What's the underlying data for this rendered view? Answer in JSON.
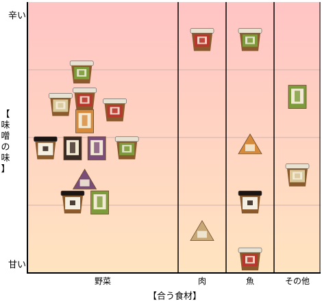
{
  "chart_data": {
    "type": "scatter",
    "title": "",
    "xlabel": "【合う食材】",
    "ylabel": "【味噌の味】",
    "categories": [
      "野菜",
      "肉",
      "魚",
      "その他"
    ],
    "y_axis": {
      "top_label": "辛い",
      "bottom_label": "甘い",
      "range": [
        0,
        1
      ]
    },
    "grid": true,
    "background": {
      "top_color": "#ffc4c4",
      "bottom_color": "#ffe4c0"
    },
    "points": [
      {
        "category": "野菜",
        "x": 0.36,
        "y": 0.74,
        "style": "tub-green"
      },
      {
        "category": "野菜",
        "x": 0.22,
        "y": 0.62,
        "style": "tub-cream"
      },
      {
        "category": "野菜",
        "x": 0.38,
        "y": 0.64,
        "style": "tub-red"
      },
      {
        "category": "野菜",
        "x": 0.38,
        "y": 0.56,
        "style": "pack-orange"
      },
      {
        "category": "野菜",
        "x": 0.58,
        "y": 0.6,
        "style": "tub-red"
      },
      {
        "category": "野菜",
        "x": 0.12,
        "y": 0.46,
        "style": "tub-dark"
      },
      {
        "category": "野菜",
        "x": 0.3,
        "y": 0.46,
        "style": "pack-dark"
      },
      {
        "category": "野菜",
        "x": 0.46,
        "y": 0.46,
        "style": "pack-purple"
      },
      {
        "category": "野菜",
        "x": 0.66,
        "y": 0.46,
        "style": "tub-green"
      },
      {
        "category": "野菜",
        "x": 0.38,
        "y": 0.34,
        "style": "bag-purple"
      },
      {
        "category": "野菜",
        "x": 0.3,
        "y": 0.26,
        "style": "tub-dark"
      },
      {
        "category": "野菜",
        "x": 0.48,
        "y": 0.26,
        "style": "pack-green"
      },
      {
        "category": "肉",
        "x": 0.5,
        "y": 0.86,
        "style": "tub-red"
      },
      {
        "category": "肉",
        "x": 0.5,
        "y": 0.15,
        "style": "bag-tan"
      },
      {
        "category": "魚",
        "x": 0.5,
        "y": 0.86,
        "style": "tub-green"
      },
      {
        "category": "魚",
        "x": 0.5,
        "y": 0.47,
        "style": "bag-orange"
      },
      {
        "category": "魚",
        "x": 0.5,
        "y": 0.26,
        "style": "tub-dark"
      },
      {
        "category": "魚",
        "x": 0.5,
        "y": 0.05,
        "style": "tub-red"
      },
      {
        "category": "その他",
        "x": 0.5,
        "y": 0.65,
        "style": "pack-green"
      },
      {
        "category": "その他",
        "x": 0.5,
        "y": 0.36,
        "style": "tub-cream"
      }
    ]
  }
}
